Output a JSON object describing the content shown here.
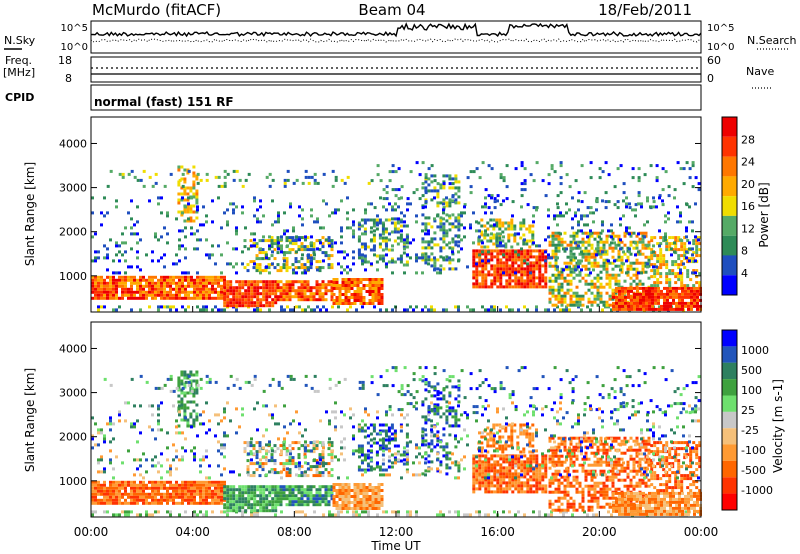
{
  "header": {
    "station": "McMurdo (fitACF)",
    "beam": "Beam 04",
    "date": "18/Feb/2011"
  },
  "summary_labels": {
    "nsky": "N.Sky",
    "nsearch": "N.Search",
    "freq_line1": "Freq.",
    "freq_line2": "[MHz]",
    "nave": "Nave",
    "cpid": "CPID",
    "cpid_value": "normal (fast) 151 RF",
    "noise_ticks": [
      "10^5",
      "10^0"
    ],
    "freq_ticks": [
      "18",
      "8"
    ],
    "nave_ticks": [
      "60",
      "0"
    ]
  },
  "colors": {
    "power_scale": [
      "#0000ff",
      "#1f4fbf",
      "#2e8b57",
      "#55aa66",
      "#f0dd00",
      "#ffaa00",
      "#ff7700",
      "#ff3300",
      "#ee0000"
    ],
    "velocity_scale": [
      "#ff0000",
      "#ff3300",
      "#ff6600",
      "#ff9a33",
      "#f5c07a",
      "#c8c8c8",
      "#6ee06e",
      "#3ea13e",
      "#2e8060",
      "#2255bb",
      "#0000ff"
    ]
  },
  "chart_data": [
    {
      "type": "heatmap",
      "title": "McMurdo (fitACF)  Beam 04  18/Feb/2011",
      "xlabel": "Time UT",
      "ylabel": "Slant Range [km]",
      "x_ticks": [
        "00:00",
        "04:00",
        "08:00",
        "12:00",
        "16:00",
        "20:00",
        "00:00"
      ],
      "xlim": [
        0,
        24
      ],
      "y_ticks": [
        1000,
        2000,
        3000,
        4000
      ],
      "ylim": [
        180,
        4600
      ],
      "colorbar": {
        "label": "Power [dB]",
        "ticks": [
          4,
          8,
          12,
          16,
          20,
          24,
          28
        ],
        "range": [
          0,
          30
        ]
      },
      "features": [
        {
          "time_range": [
            0,
            5.5
          ],
          "range_km": [
            400,
            1000
          ],
          "value": "strong (24-30 dB)"
        },
        {
          "time_range": [
            5.2,
            11.8
          ],
          "range_km": [
            300,
            1000
          ],
          "value": "strong (20-30 dB)"
        },
        {
          "time_range": [
            15.0,
            18.0
          ],
          "range_km": [
            700,
            1500
          ],
          "value": "strong (20-30 dB)"
        },
        {
          "time_range": [
            20.5,
            24
          ],
          "range_km": [
            200,
            800
          ],
          "value": "strong (24-30 dB)"
        }
      ]
    },
    {
      "type": "heatmap",
      "xlabel": "Time UT",
      "ylabel": "Slant Range [km]",
      "x_ticks": [
        "00:00",
        "04:00",
        "08:00",
        "12:00",
        "16:00",
        "20:00",
        "00:00"
      ],
      "xlim": [
        0,
        24
      ],
      "y_ticks": [
        1000,
        2000,
        3000,
        4000
      ],
      "ylim": [
        180,
        4600
      ],
      "colorbar": {
        "label": "Velocity [m s-1]",
        "ticks": [
          "1000",
          "500",
          "100",
          "25",
          "-25",
          "-100",
          "-500",
          "-1000"
        ],
        "range": [
          -1000,
          1000
        ]
      },
      "features": [
        {
          "time_range": [
            0,
            5.5
          ],
          "range_km": [
            400,
            1000
          ],
          "value": "-100 to -500 m/s"
        },
        {
          "time_range": [
            5.0,
            11.0
          ],
          "range_km": [
            300,
            1100
          ],
          "value": "mixed, 100 to 500 m/s patches"
        },
        {
          "time_range": [
            15.0,
            18.0
          ],
          "range_km": [
            600,
            2200
          ],
          "value": "-100 to -500 m/s"
        },
        {
          "time_range": [
            18.0,
            24
          ],
          "range_km": [
            300,
            2000
          ],
          "value": "-100 to -500 m/s"
        }
      ]
    }
  ]
}
